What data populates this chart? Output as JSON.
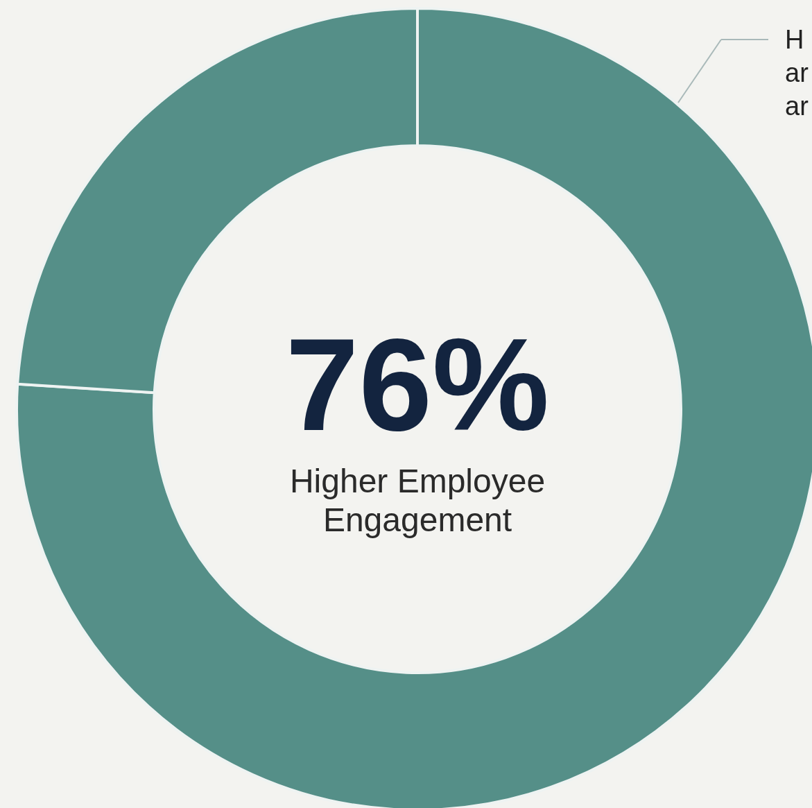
{
  "chart_data": {
    "type": "donut",
    "categories": [
      null,
      null
    ],
    "values": [
      76,
      24
    ],
    "colors": [
      "#558f88",
      "#558f88"
    ],
    "value_labels": [
      "76%",
      null
    ],
    "annotations": [
      "Higher Employee\nEngagement",
      "H",
      "ar",
      "ar"
    ]
  }
}
